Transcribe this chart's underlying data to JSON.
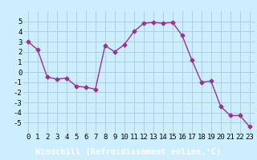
{
  "x": [
    0,
    1,
    2,
    3,
    4,
    5,
    6,
    7,
    8,
    9,
    10,
    11,
    12,
    13,
    14,
    15,
    16,
    17,
    18,
    19,
    20,
    21,
    22,
    23
  ],
  "y": [
    3.0,
    2.2,
    -0.5,
    -0.7,
    -0.6,
    -1.4,
    -1.5,
    -1.7,
    2.6,
    2.0,
    2.7,
    4.0,
    4.8,
    4.9,
    4.8,
    4.9,
    3.6,
    1.2,
    -1.0,
    -0.9,
    -3.4,
    -4.3,
    -4.3,
    -5.4
  ],
  "line_color": "#993399",
  "marker": "D",
  "marker_size": 2.5,
  "bg_color": "#cceeff",
  "grid_color": "#aacccc",
  "xlabel": "Windchill (Refroidissement éolien,°C)",
  "xlabel_fontsize": 7.5,
  "xlabel_bg": "#6666aa",
  "ylim": [
    -6,
    6
  ],
  "yticks": [
    -5,
    -4,
    -3,
    -2,
    -1,
    0,
    1,
    2,
    3,
    4,
    5
  ],
  "xticks": [
    0,
    1,
    2,
    3,
    4,
    5,
    6,
    7,
    8,
    9,
    10,
    11,
    12,
    13,
    14,
    15,
    16,
    17,
    18,
    19,
    20,
    21,
    22,
    23
  ],
  "tick_fontsize": 6.5,
  "line_width": 1.0
}
